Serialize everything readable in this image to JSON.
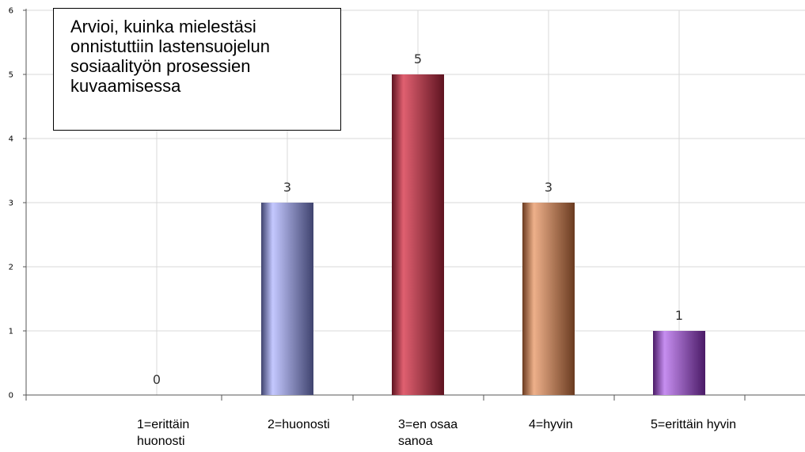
{
  "chart_data": {
    "type": "bar",
    "title_lines": [
      "Arvioi, kuinka mielestäsi",
      "onnistuttiin lastensuojelun",
      "sosiaalityön prosessien",
      "kuvaamisessa"
    ],
    "categories": [
      [
        "1=erittäin",
        "huonosti"
      ],
      [
        "2=huonosti"
      ],
      [
        "3=en osaa",
        "sanoa"
      ],
      [
        "4=hyvin"
      ],
      [
        "5=erittäin hyvin"
      ]
    ],
    "values": [
      0,
      3,
      5,
      3,
      1
    ],
    "data_labels": [
      "0",
      "3",
      "5",
      "3",
      "1"
    ],
    "colors": [
      [
        "#c4c8ff",
        "#3f436e"
      ],
      [
        "#c4c8ff",
        "#3f436e"
      ],
      [
        "#e06070",
        "#5e1320"
      ],
      [
        "#eeb08a",
        "#6a3b20"
      ],
      [
        "#c68ef0",
        "#4a1a66"
      ]
    ],
    "ylim": [
      0,
      6
    ],
    "yticks": [
      0,
      1,
      2,
      3,
      4,
      5,
      6
    ],
    "xlabel": "",
    "ylabel": "",
    "grid": true,
    "legend": "none"
  }
}
